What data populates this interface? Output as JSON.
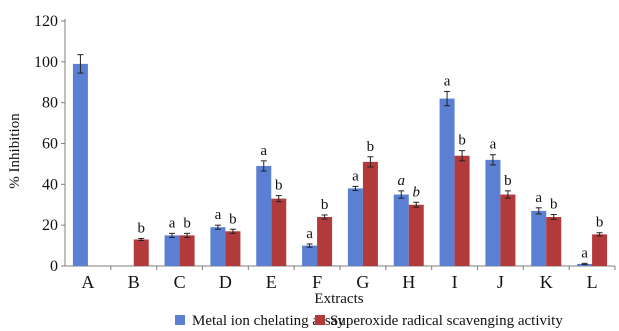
{
  "chart_data": {
    "type": "bar",
    "xlabel": "Extracts",
    "ylabel": "% Inhibition",
    "ylim": [
      0,
      120
    ],
    "yticks": [
      0,
      20,
      40,
      60,
      80,
      100,
      120
    ],
    "grid": false,
    "legend_position": "bottom",
    "categories": [
      "A",
      "B",
      "C",
      "D",
      "E",
      "F",
      "G",
      "H",
      "I",
      "J",
      "K",
      "L"
    ],
    "series": [
      {
        "name": "Metal ion chelating assay",
        "color": "#5B7FD3",
        "values": [
          99,
          null,
          15,
          19,
          49,
          10,
          38,
          35,
          82,
          52,
          27,
          1
        ],
        "errors": [
          4.5,
          null,
          1,
          1,
          2.5,
          0.8,
          1,
          1.8,
          3.5,
          2.5,
          1.5,
          0.3
        ],
        "labels": [
          "",
          "",
          "a",
          "a",
          "a",
          "a",
          "a",
          "a",
          "a",
          "a",
          "a",
          "a"
        ],
        "label_italic": [
          false,
          false,
          false,
          false,
          false,
          false,
          false,
          true,
          false,
          false,
          false,
          false
        ]
      },
      {
        "name": "Superoxide radical scavenging activity",
        "color": "#B23A3A",
        "values": [
          null,
          13,
          15,
          17,
          33,
          24,
          51,
          30,
          54,
          35,
          24,
          15.5
        ],
        "errors": [
          null,
          0.5,
          1,
          1,
          1.5,
          1,
          2.5,
          1.2,
          2.5,
          1.8,
          1.2,
          0.8
        ],
        "labels": [
          "",
          "b",
          "b",
          "b",
          "b",
          "b",
          "b",
          "b",
          "b",
          "b",
          "b",
          "b"
        ],
        "label_italic": [
          false,
          false,
          false,
          false,
          false,
          false,
          false,
          true,
          false,
          false,
          false,
          false
        ]
      }
    ]
  }
}
